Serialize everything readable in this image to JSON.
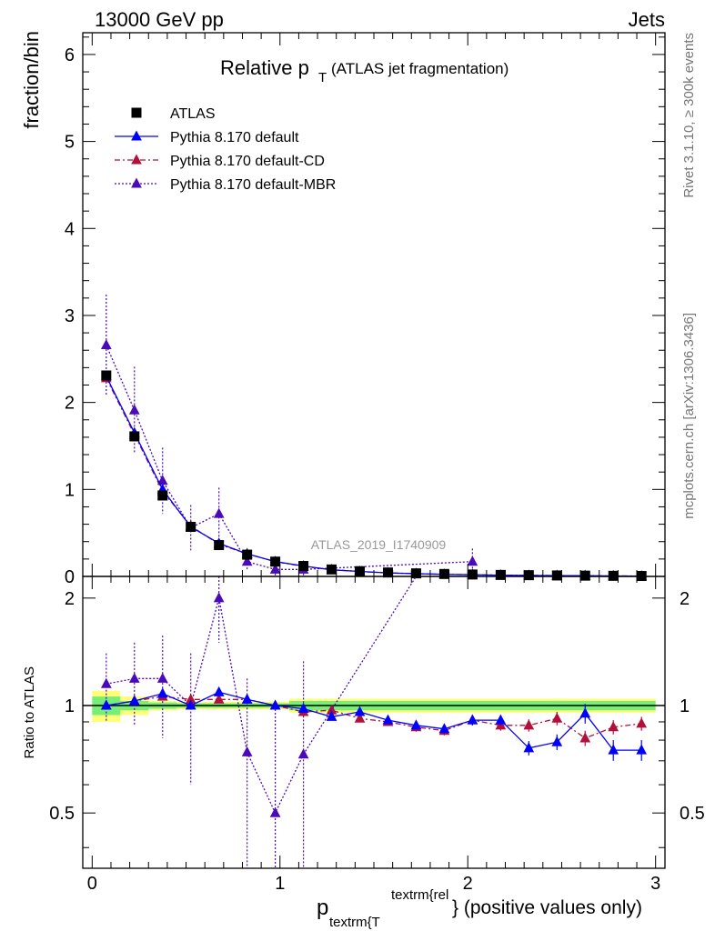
{
  "header": {
    "energy_label": "13000 GeV pp",
    "process_label": "Jets"
  },
  "side_labels": {
    "rivet": "Rivet 3.1.10, ≥ 300k events",
    "mcplots": "mcplots.cern.ch [arXiv:1306.3436]"
  },
  "chart_data": [
    {
      "panel": "main",
      "type": "scatter",
      "title_main": "Relative p",
      "title_sub": "T",
      "title_rest": "(ATLAS jet fragmentation)",
      "watermark": "ATLAS_2019_I1740909",
      "ylabel": "fraction/bin",
      "xlim": [
        -0.05,
        3.05
      ],
      "ylim": [
        0,
        6.25
      ],
      "yticks": [
        0,
        1,
        2,
        3,
        4,
        5,
        6
      ],
      "ytick_labels": [
        "0",
        "1",
        "2",
        "3",
        "4",
        "5",
        "6"
      ],
      "legend_position": "top-left",
      "x": [
        0.075,
        0.225,
        0.375,
        0.525,
        0.675,
        0.825,
        0.975,
        1.125,
        1.275,
        1.425,
        1.575,
        1.725,
        1.875,
        2.025,
        2.175,
        2.325,
        2.475,
        2.625,
        2.775,
        2.925
      ],
      "series": [
        {
          "name": "ATLAS",
          "color": "#000000",
          "marker": "square",
          "line": "none",
          "values": [
            2.31,
            1.61,
            0.93,
            0.57,
            0.36,
            0.25,
            0.17,
            0.12,
            0.08,
            0.06,
            0.045,
            0.035,
            0.028,
            0.022,
            0.017,
            0.014,
            0.011,
            0.009,
            0.007,
            0.005
          ],
          "err": [
            0.05,
            0.03,
            0.02,
            0.012,
            0.01,
            0.008,
            0.006,
            0.004,
            0.003,
            0.003,
            0.002,
            0.002,
            0.002,
            0.002,
            0.001,
            0.001,
            0.001,
            0.001,
            0.001,
            0.001
          ]
        },
        {
          "name": "Pythia 8.170 default",
          "color": "#0000ff",
          "marker": "triangle",
          "line": "solid",
          "values": [
            2.3,
            1.65,
            1.0,
            0.57,
            0.38,
            0.26,
            0.17,
            0.12,
            0.075,
            0.058,
            0.041,
            0.031,
            0.024,
            0.02,
            0.015,
            0.011,
            0.009,
            0.009,
            0.005,
            0.004
          ],
          "err": [
            0.03,
            0.02,
            0.015,
            0.01,
            0.01,
            0.008,
            0.006,
            0.005,
            0.004,
            0.003,
            0.002,
            0.002,
            0.002,
            0.002,
            0.001,
            0.001,
            0.001,
            0.001,
            0.001,
            0.001
          ]
        },
        {
          "name": "Pythia 8.170 default-CD",
          "color": "#b0103a",
          "marker": "triangle",
          "line": "dashdot",
          "values": [
            2.28,
            1.63,
            0.98,
            0.58,
            0.37,
            0.26,
            0.17,
            0.115,
            0.078,
            0.055,
            0.041,
            0.031,
            0.024,
            0.02,
            0.015,
            0.012,
            0.01,
            0.0075,
            0.006,
            0.0045
          ],
          "err": [
            0.03,
            0.02,
            0.015,
            0.01,
            0.01,
            0.008,
            0.006,
            0.005,
            0.004,
            0.003,
            0.002,
            0.002,
            0.002,
            0.002,
            0.001,
            0.001,
            0.001,
            0.001,
            0.001,
            0.001
          ]
        },
        {
          "name": "Pythia 8.170 default-MBR",
          "color": "#4b0ab8",
          "marker": "triangle",
          "line": "dotted",
          "values": [
            2.66,
            1.91,
            1.1,
            0.56,
            0.72,
            0.17,
            0.08,
            0.08,
            null,
            null,
            null,
            null,
            null,
            0.17,
            null,
            null,
            null,
            null,
            null,
            null
          ],
          "err": [
            0.58,
            0.5,
            0.38,
            0.26,
            0.3,
            0.1,
            0.08,
            0.08,
            null,
            null,
            null,
            null,
            null,
            0.15,
            null,
            null,
            null,
            null,
            null,
            null
          ]
        }
      ]
    },
    {
      "panel": "ratio",
      "type": "scatter",
      "ylabel": "Ratio to ATLAS",
      "xlabel_main": "p",
      "xlabel_sub": "textrm{T",
      "xlabel_sup": "textrm{rel",
      "xlabel_rest": "} (positive values only)",
      "xlim": [
        -0.05,
        3.05
      ],
      "ylim": [
        0.35,
        2.3
      ],
      "xticks": [
        0,
        1,
        2,
        3
      ],
      "xtick_labels": [
        "0",
        "1",
        "2",
        "3"
      ],
      "yticks": [
        0.5,
        1,
        2
      ],
      "ytick_labels": [
        "0.5",
        "1",
        "2"
      ],
      "band_inner": [
        0.94,
        0.97,
        0.98,
        0.985,
        0.985,
        0.985,
        0.985,
        0.97,
        0.97,
        0.97,
        0.97,
        0.97,
        0.97,
        0.97,
        0.97,
        0.97,
        0.97,
        0.97,
        0.97,
        0.97
      ],
      "band_inner_hi": [
        1.06,
        1.03,
        1.02,
        1.015,
        1.015,
        1.015,
        1.015,
        1.03,
        1.03,
        1.03,
        1.03,
        1.03,
        1.03,
        1.03,
        1.03,
        1.03,
        1.03,
        1.03,
        1.03,
        1.03
      ],
      "band_outer": [
        0.9,
        0.94,
        0.97,
        0.975,
        0.975,
        0.975,
        0.975,
        0.955,
        0.955,
        0.955,
        0.955,
        0.955,
        0.955,
        0.955,
        0.955,
        0.955,
        0.955,
        0.955,
        0.955,
        0.955
      ],
      "band_outer_hi": [
        1.1,
        1.06,
        1.03,
        1.025,
        1.025,
        1.025,
        1.025,
        1.045,
        1.045,
        1.045,
        1.045,
        1.045,
        1.045,
        1.045,
        1.045,
        1.045,
        1.045,
        1.045,
        1.045,
        1.045
      ],
      "band_colors": {
        "inner": "#77ee77",
        "outer": "#ffff77"
      },
      "series": [
        {
          "name": "Pythia 8.170 default",
          "color": "#0000ff",
          "marker": "triangle",
          "line": "solid",
          "values": [
            1.0,
            1.03,
            1.08,
            1.0,
            1.09,
            1.04,
            1.0,
            0.98,
            0.93,
            0.96,
            0.91,
            0.88,
            0.86,
            0.91,
            0.91,
            0.76,
            0.79,
            0.95,
            0.75,
            0.75
          ],
          "err": [
            0.02,
            0.015,
            0.015,
            0.02,
            0.02,
            0.02,
            0.02,
            0.02,
            0.02,
            0.02,
            0.02,
            0.025,
            0.025,
            0.03,
            0.03,
            0.035,
            0.04,
            0.06,
            0.05,
            0.05
          ]
        },
        {
          "name": "Pythia 8.170 default-CD",
          "color": "#b0103a",
          "marker": "triangle",
          "line": "dashdot",
          "values": [
            1.0,
            1.03,
            1.06,
            1.04,
            1.04,
            1.04,
            1.0,
            0.96,
            0.97,
            0.92,
            0.9,
            0.87,
            0.85,
            0.91,
            0.88,
            0.88,
            0.92,
            0.81,
            0.87,
            0.89
          ],
          "err": [
            0.02,
            0.015,
            0.015,
            0.02,
            0.02,
            0.02,
            0.02,
            0.02,
            0.02,
            0.02,
            0.02,
            0.025,
            0.025,
            0.03,
            0.03,
            0.035,
            0.04,
            0.04,
            0.04,
            0.04
          ]
        },
        {
          "name": "Pythia 8.170 default-MBR",
          "color": "#4b0ab8",
          "marker": "triangle",
          "line": "dotted",
          "values": [
            1.15,
            1.19,
            1.19,
            1.0,
            2.0,
            0.74,
            0.5,
            0.73,
            null,
            null,
            null,
            null,
            null,
            null,
            null,
            null,
            null,
            null,
            null,
            null
          ],
          "err": [
            0.25,
            0.31,
            0.38,
            0.4,
            0.5,
            0.45,
            0.5,
            0.6,
            null,
            null,
            null,
            null,
            null,
            null,
            null,
            null,
            null,
            null,
            null,
            null
          ]
        }
      ]
    }
  ]
}
